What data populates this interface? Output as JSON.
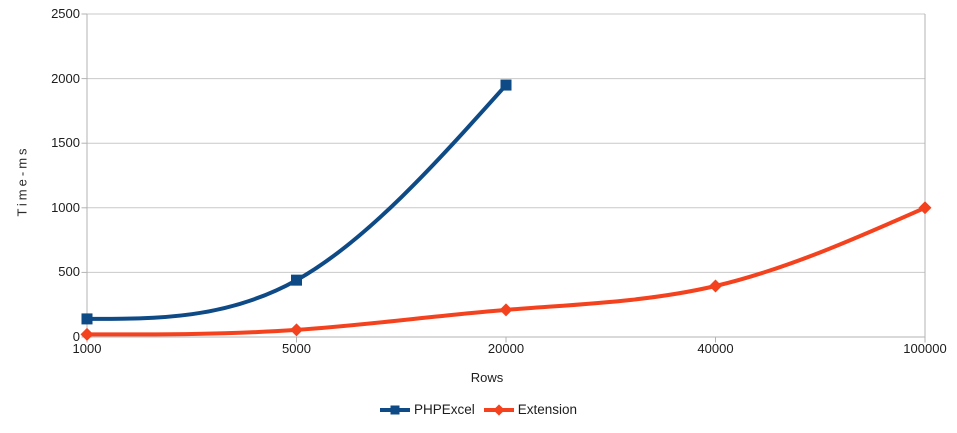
{
  "chart_data": {
    "type": "line",
    "title": "",
    "xlabel": "Rows",
    "ylabel": "Time-ms",
    "categories": [
      "1000",
      "5000",
      "20000",
      "40000",
      "100000"
    ],
    "series": [
      {
        "name": "PHPExcel",
        "color": "#0e4a86",
        "marker": "square",
        "values": [
          140,
          440,
          1950,
          null,
          null
        ]
      },
      {
        "name": "Extension",
        "color": "#f4421e",
        "marker": "diamond",
        "values": [
          20,
          55,
          210,
          395,
          1000
        ]
      }
    ],
    "ylim": [
      0,
      2500
    ],
    "yticks": [
      0,
      500,
      1000,
      1500,
      2000,
      2500
    ],
    "grid": true,
    "smooth": true,
    "legend_position": "bottom"
  },
  "theme": {
    "background": "#ffffff",
    "grid_color": "#c9c9c9",
    "axis_color": "#b3b3b3",
    "text_color": "#1d1d1d"
  }
}
